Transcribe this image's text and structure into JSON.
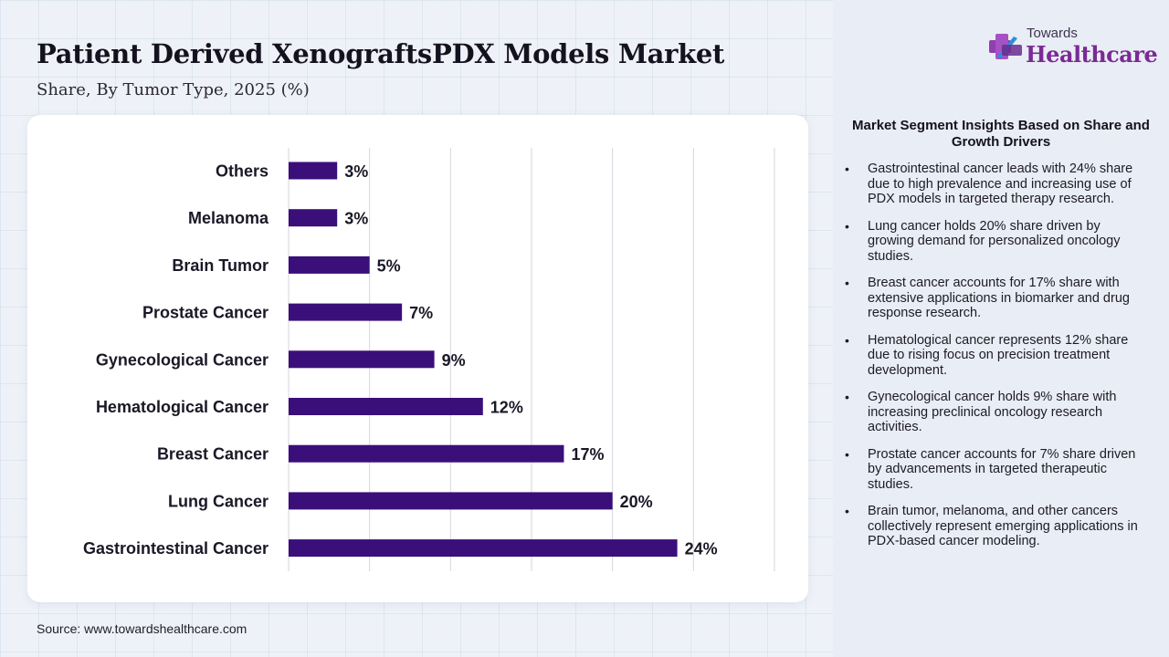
{
  "header": {
    "title": "Patient Derived XenograftsPDX Models Market",
    "subtitle": "Share, By Tumor Type, 2025 (%)"
  },
  "source": "Source: www.towardshealthcare.com",
  "logo": {
    "small": "Towards",
    "big": "Healthcare"
  },
  "insights": {
    "title": "Market Segment Insights Based on Share and Growth Drivers",
    "items": [
      "Gastrointestinal cancer leads with 24% share due to high prevalence and increasing use of PDX models in targeted therapy research.",
      "Lung cancer holds 20% share driven by growing demand for personalized oncology studies.",
      "Breast cancer accounts for 17% share with extensive applications in biomarker and drug response research.",
      "Hematological cancer represents 12% share due to rising focus on precision treatment development.",
      "Gynecological cancer holds 9% share with increasing preclinical oncology research activities.",
      "Prostate cancer accounts for 7% share driven by advancements in targeted therapeutic studies.",
      "Brain tumor, melanoma, and other cancers collectively represent emerging applications in PDX-based cancer modeling."
    ]
  },
  "colors": {
    "bar": "#3a0f7a",
    "logo_accent": "#7a2a95",
    "grid": "#d6d6de"
  },
  "chart_data": {
    "type": "bar",
    "orientation": "horizontal",
    "title": "Patient Derived XenograftsPDX Models Market",
    "subtitle": "Share, By Tumor Type, 2025 (%)",
    "categories": [
      "Others",
      "Melanoma",
      "Brain Tumor",
      "Prostate Cancer",
      "Gynecological Cancer",
      "Hematological Cancer",
      "Breast Cancer",
      "Lung Cancer",
      "Gastrointestinal Cancer"
    ],
    "values": [
      3,
      3,
      5,
      7,
      9,
      12,
      17,
      20,
      24
    ],
    "value_labels": [
      "3%",
      "3%",
      "5%",
      "7%",
      "9%",
      "12%",
      "17%",
      "20%",
      "24%"
    ],
    "xlim": [
      0,
      30
    ],
    "grid": true,
    "legend": "none"
  }
}
